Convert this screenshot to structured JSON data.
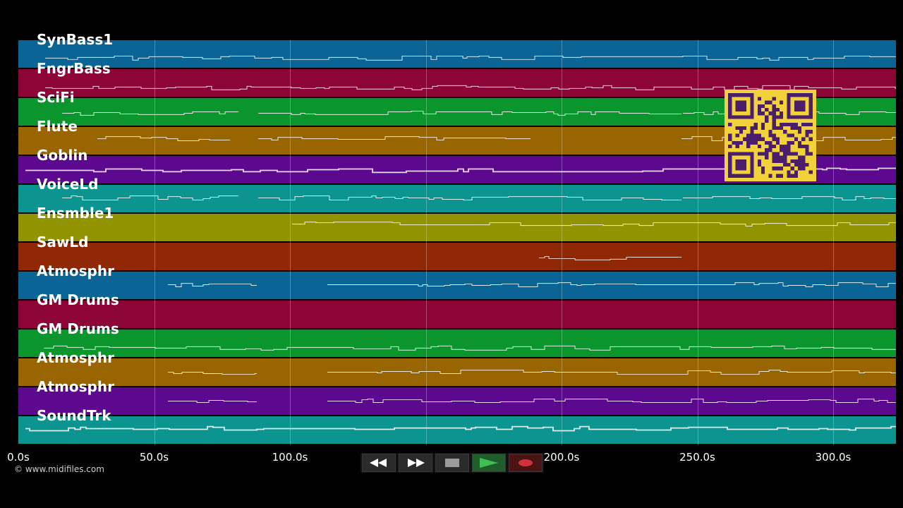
{
  "tracks": [
    {
      "name": "SynBass1",
      "color": "#0a6596"
    },
    {
      "name": "FngrBass",
      "color": "#8d0536"
    },
    {
      "name": "SciFi",
      "color": "#0a962c"
    },
    {
      "name": "Flute",
      "color": "#986500"
    },
    {
      "name": "Goblin",
      "color": "#5c0990"
    },
    {
      "name": "VoiceLd",
      "color": "#0b9490"
    },
    {
      "name": "Ensmble1",
      "color": "#919400"
    },
    {
      "name": "SawLd",
      "color": "#902805"
    },
    {
      "name": "Atmosphr",
      "color": "#0a6596"
    },
    {
      "name": "GM Drums",
      "color": "#8d0536"
    },
    {
      "name": "GM Drums",
      "color": "#0a962c"
    },
    {
      "name": "Atmosphr",
      "color": "#986500"
    },
    {
      "name": "Atmosphr",
      "color": "#5c0990"
    },
    {
      "name": "SoundTrk",
      "color": "#0b9490"
    }
  ],
  "axis": {
    "ticks": [
      "0.0s",
      "50.0s",
      "100.0s",
      "150.0s",
      "200.0s",
      "250.0s",
      "300.0s"
    ]
  },
  "copyright": "© www.midifiles.com",
  "transport": {
    "rewind_icon": "rewind-icon",
    "fast_forward_icon": "fast-forward-icon",
    "stop_icon": "stop-icon",
    "play_icon": "play-icon",
    "record_icon": "record-icon"
  },
  "qr_code": {
    "color": "#f2d23a",
    "module_color": "#4a1e6a"
  }
}
